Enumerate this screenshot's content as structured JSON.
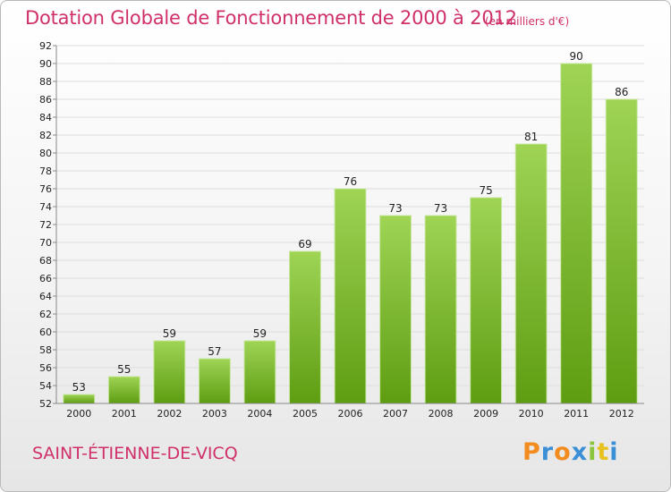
{
  "header": {
    "title": "Dotation Globale de Fonctionnement de 2000 à 2012",
    "subtitle": "(en milliers d'€)"
  },
  "footer": {
    "commune": "SAINT-ÉTIENNE-DE-VICQ",
    "logo_text": "Proxiti"
  },
  "colors": {
    "title": "#d0306a",
    "bar_top": "#9fd455",
    "bar_bottom": "#5e9d12",
    "logo_letters": [
      "#f28c1e",
      "#3a8fd6",
      "#f28c1e",
      "#3a8fd6",
      "#8cc63f",
      "#e8c11c",
      "#3a8fd6"
    ]
  },
  "chart_data": {
    "type": "bar",
    "categories": [
      "2000",
      "2001",
      "2002",
      "2003",
      "2004",
      "2005",
      "2006",
      "2007",
      "2008",
      "2009",
      "2010",
      "2011",
      "2012"
    ],
    "values": [
      53,
      55,
      59,
      57,
      59,
      69,
      76,
      73,
      73,
      75,
      81,
      90,
      86
    ],
    "title": "Dotation Globale de Fonctionnement de 2000 à 2012",
    "subtitle": "(en milliers d'€)",
    "ylim": [
      52,
      92
    ],
    "yticks": [
      52,
      54,
      56,
      58,
      60,
      62,
      64,
      66,
      68,
      70,
      72,
      74,
      76,
      78,
      80,
      82,
      84,
      86,
      88,
      90,
      92
    ],
    "grid": true,
    "legend": "none"
  }
}
